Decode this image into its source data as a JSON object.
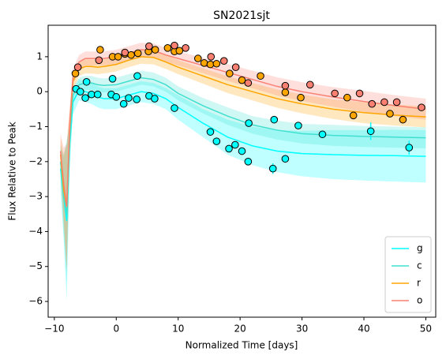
{
  "chart_data": {
    "type": "line",
    "title": "SN2021sjt",
    "x_label": "Normalized Time [days]",
    "y_label": "Flux Relative to Peak",
    "xlim": [
      -11,
      51.6
    ],
    "ylim": [
      -6.45,
      1.9
    ],
    "xticks": [
      {
        "value": -10,
        "label": "−10"
      },
      0,
      10,
      20,
      30,
      40,
      50
    ],
    "yticks": [
      {
        "value": -6,
        "label": "−6"
      },
      {
        "value": -5,
        "label": "−5"
      },
      {
        "value": -4,
        "label": "−4"
      },
      {
        "value": -3,
        "label": "−3"
      },
      {
        "value": -2,
        "label": "−2"
      },
      {
        "value": -1,
        "label": "−1"
      },
      0,
      1
    ],
    "grid": false,
    "legend": "lower right",
    "x": [
      -9,
      -8.5,
      -8,
      -7.5,
      -7,
      -6,
      -5,
      -4,
      -3,
      -2,
      0,
      2,
      4,
      6,
      8,
      10,
      14,
      18,
      22,
      26,
      30,
      35,
      40,
      45,
      50
    ],
    "series": [
      {
        "name": "g",
        "color": "#00ffff",
        "values": [
          -2.2,
          -3.0,
          -3.7,
          -1.5,
          -0.3,
          0.05,
          0.0,
          -0.05,
          -0.15,
          -0.2,
          -0.2,
          -0.1,
          0.0,
          -0.05,
          -0.2,
          -0.45,
          -0.9,
          -1.3,
          -1.55,
          -1.7,
          -1.77,
          -1.8,
          -1.82,
          -1.83,
          -1.85
        ],
        "lower": [
          -2.8,
          -4.2,
          -6.0,
          -2.1,
          -0.65,
          -0.25,
          -0.3,
          -0.35,
          -0.45,
          -0.5,
          -0.5,
          -0.4,
          -0.3,
          -0.35,
          -0.5,
          -0.8,
          -1.3,
          -1.8,
          -2.1,
          -2.3,
          -2.42,
          -2.5,
          -2.54,
          -2.57,
          -2.6
        ],
        "upper": [
          -1.6,
          -1.8,
          -1.4,
          -0.9,
          0.05,
          0.35,
          0.3,
          0.25,
          0.15,
          0.1,
          0.1,
          0.2,
          0.3,
          0.25,
          0.1,
          -0.1,
          -0.5,
          -0.8,
          -1.0,
          -1.1,
          -1.12,
          -1.1,
          -1.1,
          -1.09,
          -1.1
        ],
        "points": {
          "x": [
            -6.5,
            -5.8,
            -5,
            -4.8,
            -4,
            -3,
            -0.8,
            -0.6,
            0,
            1.2,
            2,
            3.3,
            3.4,
            5.3,
            6.2,
            9.4,
            15.2,
            16.2,
            18.2,
            19.2,
            20.3,
            21.3,
            21.4,
            25.3,
            25.5,
            27.3,
            29.4,
            33.3,
            41.1,
            47.3
          ],
          "values": [
            0.08,
            0.0,
            -0.18,
            0.28,
            -0.08,
            -0.08,
            -0.08,
            0.37,
            -0.15,
            -0.35,
            -0.18,
            -0.22,
            0.45,
            -0.12,
            -0.2,
            -0.47,
            -1.15,
            -1.42,
            -1.63,
            -1.52,
            -1.7,
            -2.0,
            -0.9,
            -2.2,
            -0.8,
            -1.92,
            -0.97,
            -1.22,
            -1.13,
            -1.6
          ],
          "errors": [
            0.05,
            0.05,
            0.05,
            0.05,
            0.05,
            0.05,
            0.05,
            0.05,
            0.05,
            0.05,
            0.05,
            0.05,
            0.05,
            0.05,
            0.05,
            0.05,
            0.08,
            0.08,
            0.08,
            0.08,
            0.08,
            0.1,
            0.05,
            0.15,
            0.05,
            0.1,
            0.05,
            0.1,
            0.25,
            0.2
          ]
        }
      },
      {
        "name": "c",
        "color": "#40e0d0",
        "values": [
          -2.0,
          -3.0,
          -3.5,
          -1.3,
          -0.1,
          0.2,
          0.25,
          0.25,
          0.2,
          0.18,
          0.2,
          0.3,
          0.4,
          0.35,
          0.2,
          -0.05,
          -0.4,
          -0.7,
          -0.95,
          -1.1,
          -1.2,
          -1.25,
          -1.28,
          -1.3,
          -1.32
        ],
        "lower": [
          -2.5,
          -4.1,
          -5.5,
          -1.8,
          -0.35,
          0.0,
          0.05,
          0.05,
          0.0,
          -0.02,
          0.0,
          0.1,
          0.2,
          0.15,
          0.0,
          -0.25,
          -0.62,
          -0.95,
          -1.2,
          -1.37,
          -1.48,
          -1.55,
          -1.58,
          -1.6,
          -1.62
        ],
        "upper": [
          -1.5,
          -1.9,
          -1.5,
          -0.8,
          0.15,
          0.4,
          0.45,
          0.45,
          0.4,
          0.38,
          0.4,
          0.5,
          0.6,
          0.55,
          0.4,
          0.15,
          -0.18,
          -0.45,
          -0.7,
          -0.83,
          -0.92,
          -0.95,
          -0.98,
          -1.0,
          -1.02
        ]
      },
      {
        "name": "r",
        "color": "#ffa500",
        "values": [
          -1.8,
          -2.8,
          -3.3,
          -1.0,
          0.3,
          0.65,
          0.72,
          0.72,
          0.7,
          0.72,
          0.78,
          0.9,
          1.0,
          0.98,
          0.85,
          0.7,
          0.45,
          0.2,
          0.0,
          -0.2,
          -0.35,
          -0.5,
          -0.6,
          -0.67,
          -0.72
        ],
        "lower": [
          -2.3,
          -3.8,
          -5.1,
          -1.5,
          0.05,
          0.45,
          0.52,
          0.52,
          0.5,
          0.52,
          0.58,
          0.7,
          0.8,
          0.78,
          0.65,
          0.5,
          0.23,
          -0.04,
          -0.25,
          -0.46,
          -0.62,
          -0.78,
          -0.9,
          -0.97,
          -1.02
        ],
        "upper": [
          -1.3,
          -1.8,
          -1.5,
          -0.5,
          0.55,
          0.85,
          0.92,
          0.92,
          0.9,
          0.92,
          0.98,
          1.1,
          1.2,
          1.18,
          1.05,
          0.9,
          0.67,
          0.44,
          0.25,
          0.06,
          -0.08,
          -0.22,
          -0.3,
          -0.37,
          -0.42
        ],
        "points": {
          "x": [
            -6.6,
            -2.6,
            -0.6,
            0.3,
            1.4,
            2.4,
            3.5,
            5.2,
            6.3,
            8.3,
            9.4,
            10.2,
            13.2,
            14.2,
            15.2,
            16.2,
            18.3,
            20.3,
            23.3,
            27.3,
            29.8,
            37.3,
            38.3,
            44.2,
            46.3
          ],
          "values": [
            0.52,
            1.2,
            1.0,
            1.0,
            1.08,
            1.05,
            1.1,
            1.15,
            1.2,
            1.25,
            1.15,
            1.17,
            0.95,
            0.82,
            0.78,
            0.8,
            0.52,
            0.33,
            0.45,
            -0.02,
            -0.17,
            -0.17,
            -0.68,
            -0.63,
            -0.8
          ],
          "errors": [
            0.05,
            0.05,
            0.05,
            0.05,
            0.05,
            0.05,
            0.05,
            0.05,
            0.05,
            0.05,
            0.05,
            0.05,
            0.05,
            0.05,
            0.05,
            0.05,
            0.05,
            0.05,
            0.05,
            0.05,
            0.05,
            0.05,
            0.05,
            0.05,
            0.05
          ]
        }
      },
      {
        "name": "o",
        "color": "#fa8072",
        "values": [
          -1.7,
          -2.6,
          -3.3,
          -0.9,
          0.4,
          0.85,
          0.95,
          0.95,
          0.95,
          0.95,
          1.0,
          1.1,
          1.2,
          1.18,
          1.05,
          0.95,
          0.75,
          0.55,
          0.35,
          0.15,
          0.0,
          -0.15,
          -0.28,
          -0.4,
          -0.5
        ],
        "lower": [
          -2.2,
          -3.6,
          -5.1,
          -1.4,
          0.15,
          0.65,
          0.75,
          0.75,
          0.75,
          0.75,
          0.8,
          0.9,
          1.0,
          0.98,
          0.85,
          0.75,
          0.53,
          0.31,
          0.1,
          -0.11,
          -0.27,
          -0.43,
          -0.58,
          -0.7,
          -0.8
        ],
        "upper": [
          -1.2,
          -1.6,
          -1.5,
          -0.4,
          0.65,
          1.05,
          1.15,
          1.15,
          1.15,
          1.15,
          1.2,
          1.3,
          1.4,
          1.38,
          1.25,
          1.15,
          0.97,
          0.79,
          0.6,
          0.41,
          0.27,
          0.13,
          0.02,
          -0.1,
          -0.2
        ],
        "points": {
          "x": [
            -6.2,
            -2.8,
            1.4,
            5.3,
            9.4,
            11.2,
            15.3,
            17.4,
            19.3,
            21.3,
            27.3,
            31.3,
            35.3,
            39.3,
            41.3,
            43.3,
            45.3,
            49.3
          ],
          "values": [
            0.7,
            0.9,
            1.12,
            1.3,
            1.32,
            1.25,
            1.0,
            0.88,
            0.7,
            0.25,
            0.17,
            0.2,
            -0.05,
            -0.05,
            -0.35,
            -0.3,
            -0.3,
            -0.45
          ],
          "errors": [
            0.05,
            0.05,
            0.05,
            0.05,
            0.05,
            0.05,
            0.05,
            0.05,
            0.05,
            0.05,
            0.05,
            0.05,
            0.05,
            0.05,
            0.05,
            0.05,
            0.05,
            0.05
          ]
        }
      }
    ]
  }
}
